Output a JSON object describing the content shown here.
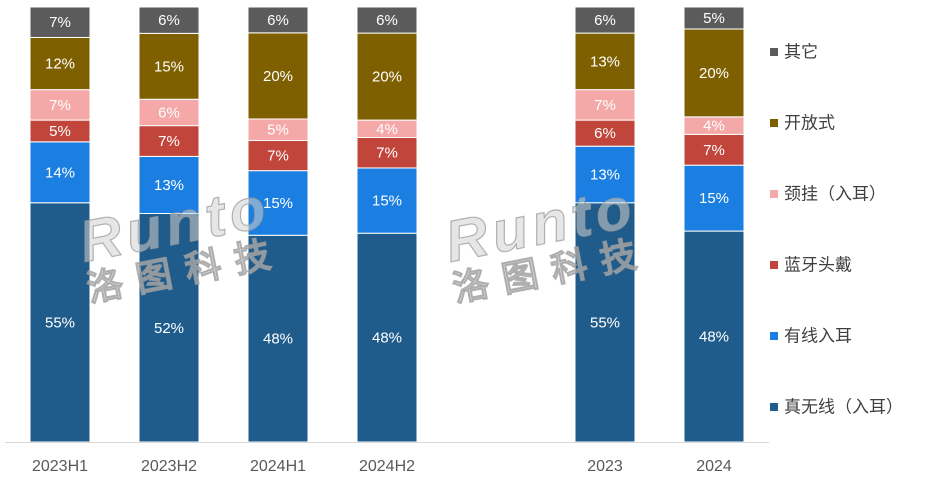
{
  "chart_data": {
    "type": "bar",
    "stacking": "percent",
    "categories": [
      "2023H1",
      "2023H2",
      "2024H1",
      "2024H2",
      "",
      "2023",
      "2024"
    ],
    "series": [
      {
        "name": "真无线（入耳）",
        "color": "#1F5C8B",
        "values": [
          55,
          52,
          48,
          48,
          null,
          55,
          48
        ]
      },
      {
        "name": "有线入耳",
        "color": "#1A7FE1",
        "values": [
          14,
          13,
          15,
          15,
          null,
          13,
          15
        ]
      },
      {
        "name": "蓝牙头戴",
        "color": "#C1453B",
        "values": [
          5,
          7,
          7,
          7,
          null,
          6,
          7
        ]
      },
      {
        "name": "颈挂（入耳）",
        "color": "#F5A8A8",
        "values": [
          7,
          6,
          5,
          4,
          null,
          7,
          4
        ]
      },
      {
        "name": "开放式",
        "color": "#7F6000",
        "values": [
          12,
          15,
          20,
          20,
          null,
          13,
          20
        ]
      },
      {
        "name": "其它",
        "color": "#5B5B5B",
        "values": [
          7,
          6,
          6,
          6,
          null,
          6,
          5
        ]
      }
    ],
    "value_suffix": "%",
    "ylim": [
      0,
      100
    ],
    "grid": false,
    "legend": "right"
  },
  "watermark": {
    "brand": "Runto",
    "name": "洛图科技"
  }
}
